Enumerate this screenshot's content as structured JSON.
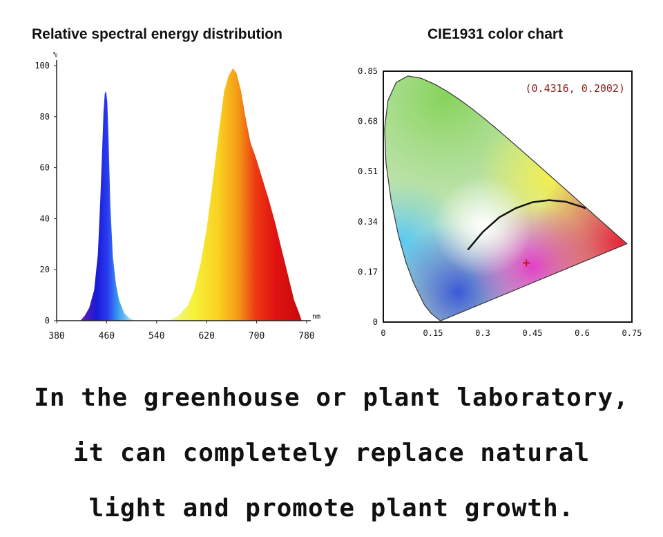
{
  "chart_data": [
    {
      "type": "area",
      "title": "Relative spectral energy distribution",
      "xlabel": "nm",
      "ylabel": "%",
      "xlim": [
        380,
        780
      ],
      "ylim": [
        0,
        100
      ],
      "x_ticks": [
        "380",
        "460",
        "540",
        "620",
        "700",
        "780"
      ],
      "y_ticks": [
        "0",
        "20",
        "40",
        "60",
        "80",
        "100"
      ],
      "series": [
        {
          "name": "Blue peak",
          "x": [
            418,
            425,
            432,
            440,
            446,
            450,
            453,
            455,
            457,
            459,
            461,
            463,
            466,
            470,
            475,
            480,
            488,
            496,
            505
          ],
          "y": [
            0,
            2,
            5,
            12,
            26,
            48,
            68,
            82,
            89,
            90,
            86,
            72,
            45,
            25,
            14,
            8,
            3,
            1,
            0
          ]
        },
        {
          "name": "Red/yellow peak",
          "x": [
            560,
            575,
            590,
            600,
            610,
            620,
            630,
            640,
            648,
            655,
            662,
            668,
            675,
            682,
            690,
            700,
            710,
            720,
            730,
            740,
            750,
            760,
            768,
            772
          ],
          "y": [
            0,
            2,
            6,
            12,
            22,
            36,
            55,
            75,
            90,
            96,
            99,
            97,
            90,
            80,
            70,
            63,
            55,
            47,
            38,
            28,
            18,
            8,
            3,
            0
          ]
        }
      ]
    },
    {
      "type": "scatter",
      "title": "CIE1931 color chart",
      "xlim": [
        0,
        0.75
      ],
      "ylim": [
        0,
        0.85
      ],
      "x_ticks": [
        "0",
        "0.15",
        "0.3",
        "0.45",
        "0.6",
        "0.75"
      ],
      "y_ticks": [
        "0",
        "0.17",
        "0.34",
        "0.51",
        "0.68",
        "0.85"
      ],
      "point": {
        "x": 0.4316,
        "y": 0.2002,
        "label": "(0.4316, 0.2002)"
      },
      "planckian_locus": {
        "x": [
          0.255,
          0.3,
          0.35,
          0.4,
          0.45,
          0.5,
          0.55,
          0.6,
          0.61
        ],
        "y": [
          0.245,
          0.305,
          0.355,
          0.386,
          0.406,
          0.413,
          0.408,
          0.39,
          0.385
        ]
      },
      "spectral_locus": {
        "x": [
          0.1741,
          0.1733,
          0.1721,
          0.1689,
          0.1644,
          0.1566,
          0.144,
          0.1241,
          0.0913,
          0.0687,
          0.0454,
          0.0235,
          0.0082,
          0.0039,
          0.0139,
          0.0389,
          0.0743,
          0.1142,
          0.1547,
          0.1929,
          0.2296,
          0.2658,
          0.3016,
          0.3373,
          0.3731,
          0.4087,
          0.4441,
          0.4788,
          0.5125,
          0.5448,
          0.5752,
          0.6029,
          0.627,
          0.6482,
          0.6658,
          0.6801,
          0.6915,
          0.7006,
          0.7079,
          0.7347
        ],
        "y": [
          0.005,
          0.0048,
          0.0048,
          0.0069,
          0.0109,
          0.0177,
          0.0297,
          0.0578,
          0.1327,
          0.2007,
          0.295,
          0.4127,
          0.5384,
          0.6548,
          0.7502,
          0.812,
          0.8338,
          0.8262,
          0.8059,
          0.7816,
          0.7543,
          0.7243,
          0.6923,
          0.6589,
          0.6245,
          0.5896,
          0.5547,
          0.5202,
          0.4866,
          0.4544,
          0.4242,
          0.3965,
          0.3725,
          0.3514,
          0.334,
          0.3197,
          0.3083,
          0.2993,
          0.292,
          0.2653
        ]
      }
    }
  ],
  "captions": [
    "In the greenhouse or plant laboratory,",
    "it can completely replace natural",
    "light and promote plant growth."
  ]
}
